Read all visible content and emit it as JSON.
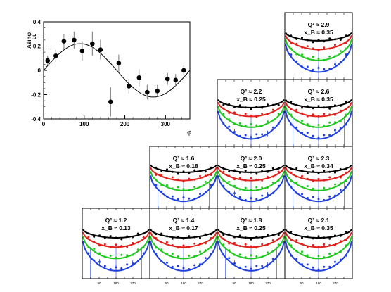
{
  "chart_data": [
    {
      "type": "scatter",
      "ylabel": "A_UL^{sinφ}",
      "ylabel_main": "Asinφ",
      "ylabel_sub": "UL",
      "xlabel": "φ",
      "xlim": [
        0,
        360
      ],
      "ylim": [
        -0.4,
        0.4
      ],
      "xticks": [
        "0",
        "100",
        "200",
        "300"
      ],
      "yticks": [
        "0.4",
        "0.2",
        "0",
        "-0.2",
        "-0.4"
      ],
      "x": [
        10,
        30,
        50,
        75,
        95,
        120,
        140,
        165,
        185,
        210,
        235,
        255,
        280,
        305,
        325,
        345
      ],
      "y": [
        0.08,
        0.12,
        0.24,
        0.25,
        0.16,
        0.22,
        0.17,
        -0.26,
        0.06,
        -0.13,
        -0.06,
        -0.18,
        -0.17,
        -0.07,
        -0.08,
        0.0
      ],
      "yerr": [
        0.04,
        0.05,
        0.06,
        0.07,
        0.08,
        0.1,
        0.08,
        0.12,
        0.07,
        0.06,
        0.07,
        0.06,
        0.05,
        0.05,
        0.05,
        0.04
      ],
      "fit": "a sin phi",
      "fit_amplitude": 0.22
    },
    {
      "type": "scatter",
      "kinematic_bins": [
        {
          "q2": "Q² ≈ 1.2",
          "xb": "x_B ≈ 0.13"
        },
        {
          "q2": "Q² ≈ 1.4",
          "xb": "x_B ≈ 0.17"
        },
        {
          "q2": "Q² ≈ 1.8",
          "xb": "x_B ≈ 0.25"
        },
        {
          "q2": "Q² ≈ 2.1",
          "xb": "x_B ≈ 0.35"
        },
        {
          "q2": "Q² ≈ 1.6",
          "xb": "x_B ≈ 0.18"
        },
        {
          "q2": "Q² ≈ 2.0",
          "xb": "x_B ≈ 0.25"
        },
        {
          "q2": "Q² ≈ 2.3",
          "xb": "x_B ≈ 0.34"
        },
        {
          "q2": "Q² ≈ 2.2",
          "xb": "x_B ≈ 0.25"
        },
        {
          "q2": "Q² ≈ 2.6",
          "xb": "x_B ≈ 0.35"
        },
        {
          "q2": "Q² ≈ 2.9",
          "xb": "x_B ≈ 0.35"
        }
      ],
      "series_colors": [
        "#000000",
        "#e0201a",
        "#1ec81e",
        "#2040e0"
      ],
      "xticks": [
        "90",
        "180",
        "270"
      ],
      "ylog": true
    }
  ]
}
